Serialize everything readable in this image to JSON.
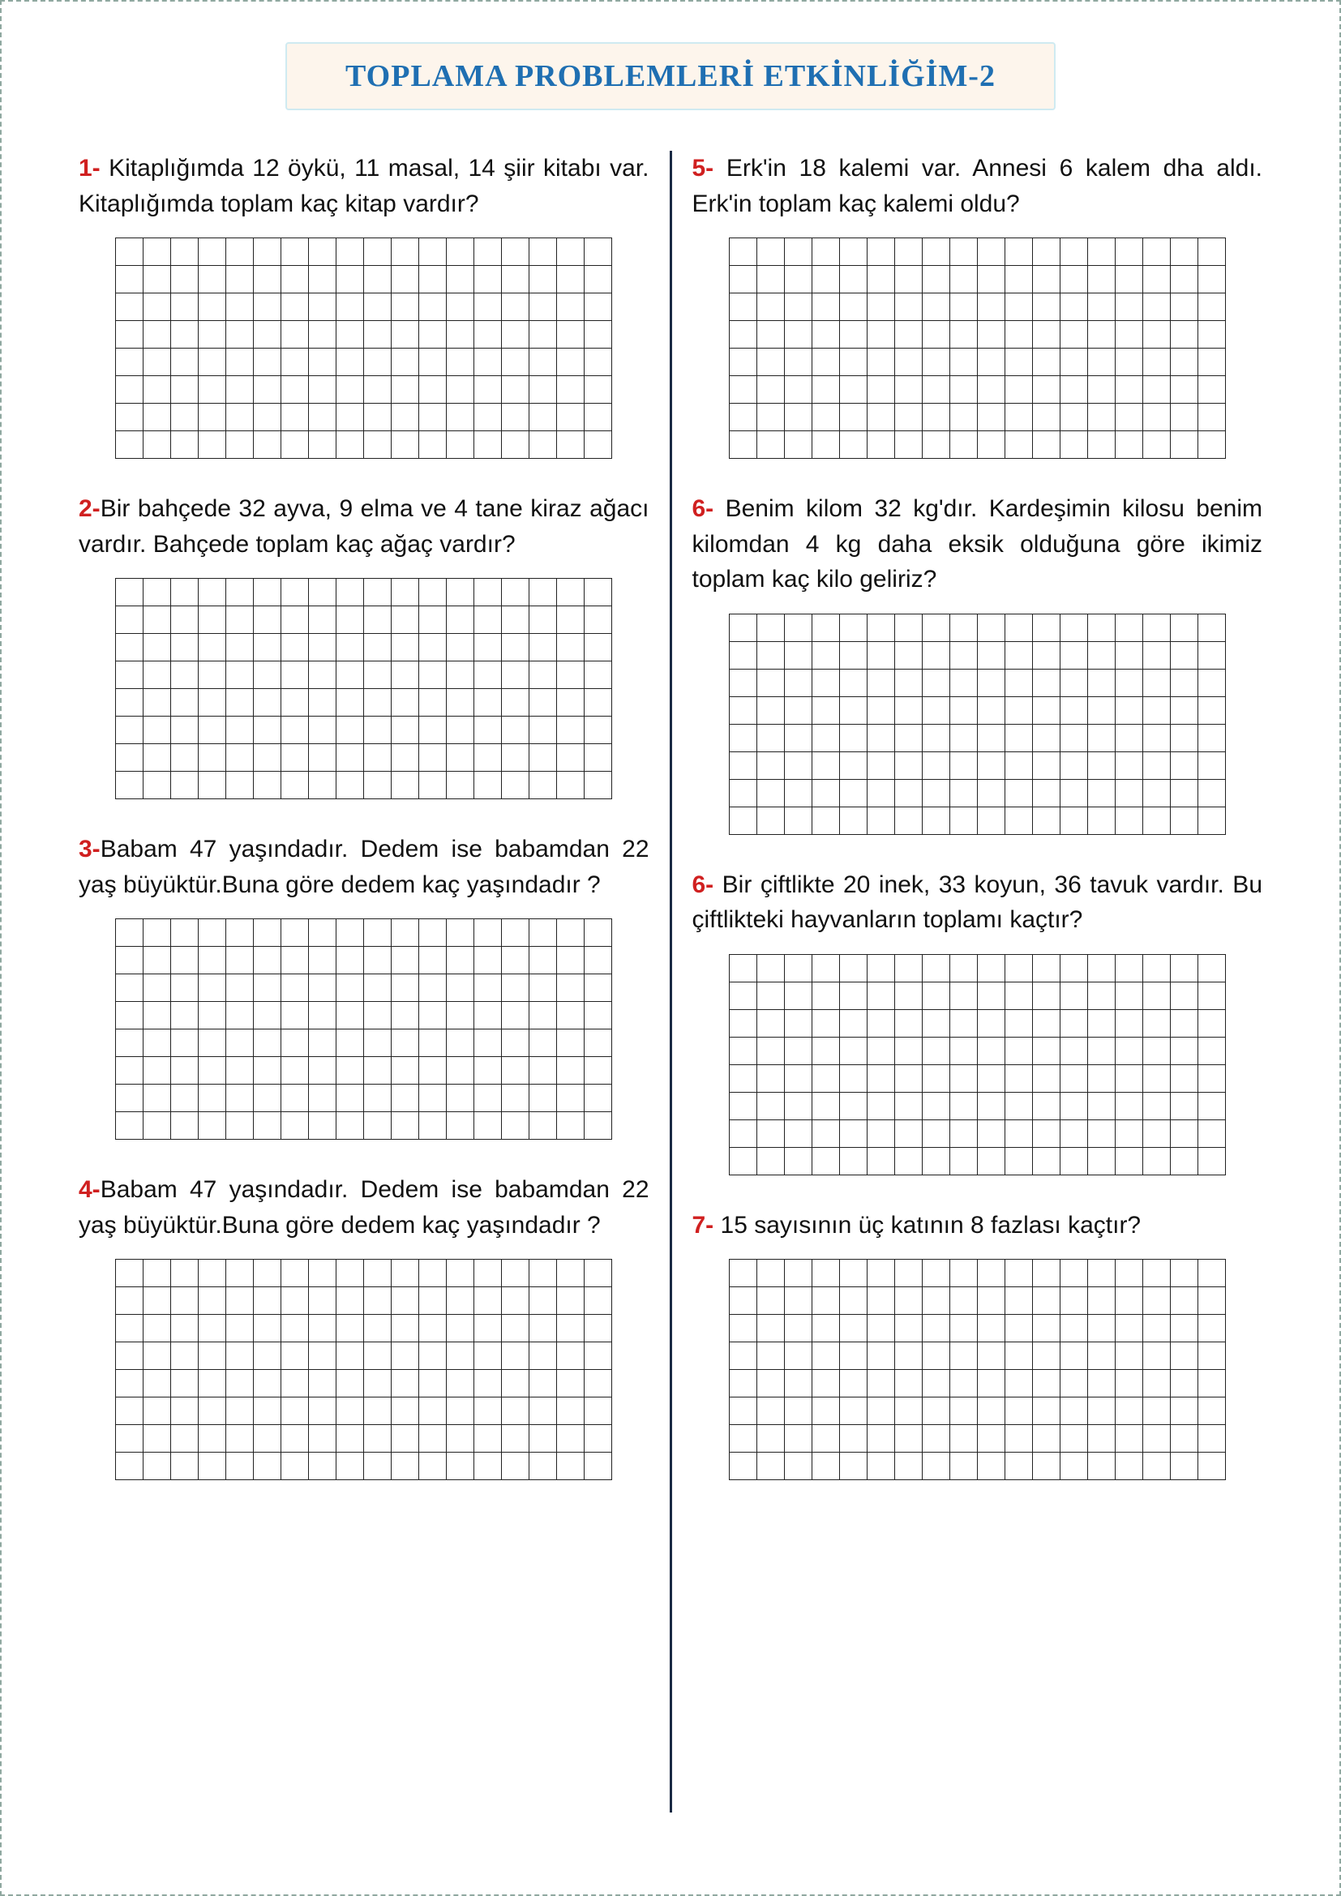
{
  "title": "TOPLAMA PROBLEMLERİ ETKİNLİĞİM-2",
  "grid": {
    "cols": 18,
    "rows": 8
  },
  "colors": {
    "title_text": "#1f6fb2",
    "title_bg": "#fdf5ec",
    "title_border": "#cfeaf1",
    "problem_number": "#d02020",
    "body_text": "#111111",
    "grid_border": "#222222",
    "divider": "#1a2a44",
    "page_dash": "#8fa8a0"
  },
  "left": [
    {
      "num": "1-",
      "text": " Kitaplığımda 12 öykü, 11 masal, 14 şiir kitabı var. Kitaplığımda toplam kaç kitap vardır?"
    },
    {
      "num": "2-",
      "text": "Bir bahçede 32 ayva, 9 elma ve 4 tane kiraz ağacı vardır. Bahçede toplam kaç ağaç vardır?"
    },
    {
      "num": "3-",
      "text": "Babam 47 yaşındadır. Dedem ise babamdan 22 yaş büyüktür.Buna göre dedem kaç yaşındadır ?"
    },
    {
      "num": "4-",
      "text": "Babam 47 yaşındadır. Dedem ise babamdan 22 yaş büyüktür.Buna göre dedem kaç yaşındadır ?"
    }
  ],
  "right": [
    {
      "num": "5-",
      "text": " Erk'in 18 kalemi var. Annesi 6 kalem dha aldı. Erk'in toplam kaç kalemi oldu?"
    },
    {
      "num": "6-",
      "text": " Benim kilom 32 kg'dır. Kardeşimin kilosu benim kilomdan 4 kg daha eksik olduğuna göre ikimiz toplam kaç kilo geliriz?"
    },
    {
      "num": "6-",
      "text": " Bir çiftlikte 20 inek, 33 koyun, 36 tavuk vardır. Bu çiftlikteki hayvanların toplamı kaçtır?"
    },
    {
      "num": "7-",
      "text": " 15 sayısının üç katının 8 fazlası kaçtır?"
    }
  ]
}
